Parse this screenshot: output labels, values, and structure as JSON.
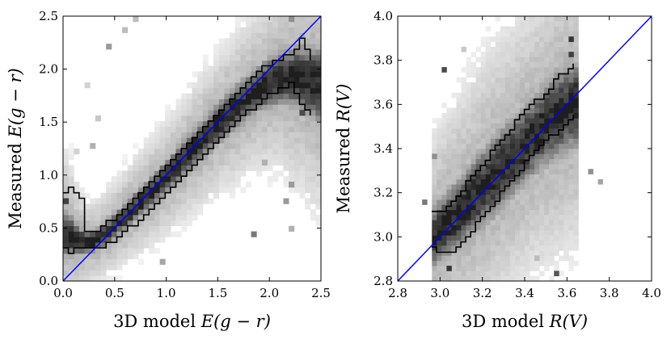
{
  "chart_data": [
    {
      "type": "heatmap",
      "title": "",
      "xlabel_prefix": "3D model ",
      "xlabel_math": "E(g − r)",
      "ylabel_prefix": "Measured ",
      "ylabel_math": "E(g − r)",
      "xlim": [
        0.0,
        2.5
      ],
      "ylim": [
        0.0,
        2.5
      ],
      "xticks": [
        "0.0",
        "0.5",
        "1.0",
        "1.5",
        "2.0",
        "2.5"
      ],
      "xtick_values": [
        0.0,
        0.5,
        1.0,
        1.5,
        2.0,
        2.5
      ],
      "yticks": [
        "0.0",
        "0.5",
        "1.0",
        "1.5",
        "2.0",
        "2.5"
      ],
      "ytick_values": [
        0.0,
        0.5,
        1.0,
        1.5,
        2.0,
        2.5
      ],
      "reference_line": {
        "label": "y = x",
        "color": "#0000ff",
        "from": [
          0.0,
          0.0
        ],
        "to": [
          2.5,
          2.5
        ]
      },
      "density_ridge": {
        "description": "2D histogram of measured vs model values, dark ridge along the diagonal",
        "x": [
          0.05,
          0.15,
          0.25,
          0.35,
          0.5,
          0.7,
          0.9,
          1.1,
          1.3,
          1.5,
          1.7,
          1.9,
          2.1,
          2.3,
          2.45
        ],
        "center": [
          0.45,
          0.38,
          0.36,
          0.4,
          0.52,
          0.7,
          0.88,
          1.08,
          1.28,
          1.48,
          1.66,
          1.82,
          1.92,
          1.92,
          1.85
        ],
        "width": [
          0.16,
          0.1,
          0.08,
          0.08,
          0.09,
          0.1,
          0.11,
          0.12,
          0.13,
          0.14,
          0.15,
          0.16,
          0.18,
          0.22,
          0.25
        ]
      },
      "contour_upper": {
        "x": [
          0.0,
          0.05,
          0.15,
          0.2,
          0.3,
          0.5,
          0.7,
          0.9,
          1.1,
          1.3,
          1.5,
          1.7,
          1.9,
          2.1,
          2.2,
          2.3,
          2.4
        ],
        "y": [
          0.85,
          0.87,
          0.82,
          0.45,
          0.47,
          0.62,
          0.82,
          1.02,
          1.22,
          1.42,
          1.62,
          1.82,
          2.02,
          2.1,
          2.15,
          2.3,
          2.1
        ]
      },
      "contour_lower": {
        "x": [
          0.0,
          0.05,
          0.15,
          0.2,
          0.3,
          0.5,
          0.7,
          0.9,
          1.1,
          1.3,
          1.5,
          1.7,
          1.9,
          2.1,
          2.2,
          2.3,
          2.4
        ],
        "y": [
          0.32,
          0.28,
          0.3,
          0.3,
          0.29,
          0.4,
          0.56,
          0.74,
          0.94,
          1.14,
          1.34,
          1.54,
          1.7,
          1.82,
          1.87,
          1.62,
          1.58
        ]
      },
      "outliers": [
        [
          0.05,
          0.78,
          0.85
        ],
        [
          0.05,
          0.38,
          0.9
        ],
        [
          0.45,
          2.2,
          0.45
        ],
        [
          0.6,
          2.35,
          0.3
        ],
        [
          0.3,
          1.3,
          0.35
        ],
        [
          0.95,
          0.2,
          0.4
        ],
        [
          1.85,
          0.45,
          0.6
        ],
        [
          2.15,
          0.75,
          0.45
        ],
        [
          1.95,
          1.1,
          0.35
        ],
        [
          2.2,
          0.92,
          0.45
        ],
        [
          2.2,
          2.45,
          0.5
        ],
        [
          2.4,
          2.05,
          0.85
        ],
        [
          0.25,
          1.85,
          0.2
        ],
        [
          0.35,
          1.55,
          0.25
        ],
        [
          0.7,
          2.45,
          0.3
        ],
        [
          0.15,
          1.2,
          0.2
        ],
        [
          2.3,
          1.6,
          0.8
        ],
        [
          2.45,
          1.75,
          0.85
        ],
        [
          2.2,
          0.5,
          0.35
        ]
      ]
    },
    {
      "type": "heatmap",
      "title": "",
      "xlabel_prefix": "3D model ",
      "xlabel_math": "R(V)",
      "ylabel_prefix": "Measured ",
      "ylabel_math": "R(V)",
      "xlim": [
        2.8,
        4.0
      ],
      "ylim": [
        2.8,
        4.0
      ],
      "xticks": [
        "2.8",
        "3.0",
        "3.2",
        "3.4",
        "3.6",
        "3.8",
        "4.0"
      ],
      "xtick_values": [
        2.8,
        3.0,
        3.2,
        3.4,
        3.6,
        3.8,
        4.0
      ],
      "yticks": [
        "2.8",
        "3.0",
        "3.2",
        "3.4",
        "3.6",
        "3.8",
        "4.0"
      ],
      "ytick_values": [
        2.8,
        3.0,
        3.2,
        3.4,
        3.6,
        3.8,
        4.0
      ],
      "reference_line": {
        "label": "y = x",
        "color": "#0000ff",
        "from": [
          2.8,
          2.8
        ],
        "to": [
          4.0,
          4.0
        ]
      },
      "density_ridge": {
        "description": "2D histogram of measured vs model values, bounded roughly by x in [2.95, 3.65]",
        "x_min": 2.95,
        "x_max": 3.65,
        "x": [
          2.97,
          3.05,
          3.15,
          3.25,
          3.35,
          3.45,
          3.55,
          3.63
        ],
        "center": [
          3.0,
          3.07,
          3.17,
          3.27,
          3.37,
          3.47,
          3.55,
          3.6
        ],
        "width": [
          0.1,
          0.11,
          0.12,
          0.13,
          0.13,
          0.13,
          0.14,
          0.14
        ]
      },
      "contour_upper": {
        "x": [
          2.96,
          3.0,
          3.05,
          3.1,
          3.15,
          3.2,
          3.25,
          3.3,
          3.35,
          3.4,
          3.45,
          3.5,
          3.55,
          3.6,
          3.64
        ],
        "y": [
          3.12,
          3.1,
          3.16,
          3.22,
          3.28,
          3.34,
          3.4,
          3.46,
          3.52,
          3.58,
          3.62,
          3.66,
          3.72,
          3.76,
          3.8
        ]
      },
      "contour_lower": {
        "x": [
          2.96,
          3.0,
          3.05,
          3.1,
          3.15,
          3.2,
          3.25,
          3.3,
          3.35,
          3.4,
          3.45,
          3.5,
          3.55,
          3.6,
          3.64
        ],
        "y": [
          2.96,
          2.92,
          2.94,
          2.98,
          3.04,
          3.1,
          3.16,
          3.22,
          3.28,
          3.34,
          3.4,
          3.44,
          3.48,
          3.52,
          3.56
        ]
      },
      "outliers": [
        [
          3.03,
          3.76,
          0.8
        ],
        [
          2.97,
          3.02,
          0.85
        ],
        [
          3.63,
          3.9,
          0.9
        ],
        [
          3.63,
          3.82,
          0.85
        ],
        [
          3.7,
          3.3,
          0.5
        ],
        [
          3.75,
          3.25,
          0.4
        ],
        [
          2.93,
          3.15,
          0.6
        ],
        [
          3.05,
          2.85,
          0.9
        ],
        [
          3.55,
          2.83,
          0.75
        ],
        [
          3.1,
          3.85,
          0.25
        ],
        [
          3.45,
          2.9,
          0.3
        ],
        [
          2.98,
          3.36,
          0.5
        ]
      ]
    }
  ]
}
